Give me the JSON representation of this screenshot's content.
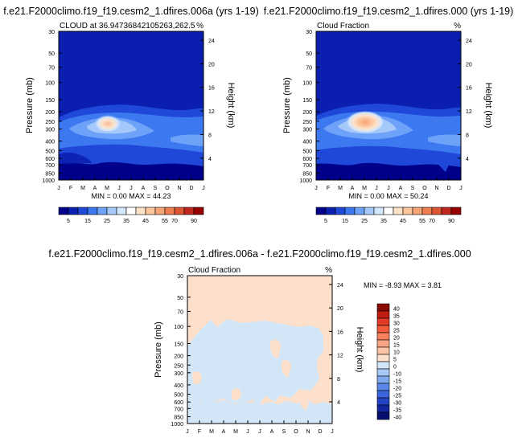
{
  "panels": [
    {
      "id": "p1",
      "main_title": "f.e21.F2000climo.f19_f19.cesm2_1.dfires.006a (yrs 1-19)",
      "left_label": "CLOUD at 36.94736842105263,262.5",
      "right_label": "%",
      "stats": "MIN =   0.00 MAX =  44.23"
    },
    {
      "id": "p2",
      "main_title": "f.e21.F2000climo.f19_f19.cesm2_1.dfires.000 (yrs 1-19)",
      "left_label": "Cloud Fraction",
      "right_label": "%",
      "stats": "MIN =   0.00 MAX =  50.24"
    },
    {
      "id": "p3",
      "main_title": "f.e21.F2000climo.f19_f19.cesm2_1.dfires.006a - f.e21.F2000climo.f19_f19.cesm2_1.dfires.000",
      "left_label": "Cloud Fraction",
      "right_label": "%",
      "stats": "MIN = -8.93 MAX =   3.81"
    }
  ],
  "axes": {
    "ylabel": "Pressure (mb)",
    "y2label": "Height (km)",
    "month_ticks": [
      "J",
      "F",
      "M",
      "A",
      "M",
      "J",
      "J",
      "A",
      "S",
      "O",
      "N",
      "D",
      "J"
    ],
    "pressure_ticks": [
      "30",
      "50",
      "70",
      "100",
      "150",
      "200",
      "250",
      "300",
      "400",
      "500",
      "600",
      "700",
      "850",
      "1000"
    ],
    "height_ticks": [
      "24",
      "20",
      "16",
      "12",
      "8",
      "4"
    ]
  },
  "colorbars": {
    "sequential": {
      "labels": [
        "5",
        "15",
        "25",
        "35",
        "45",
        "55",
        "70",
        "90"
      ],
      "colors": [
        "#00008a",
        "#0a1fb0",
        "#1f48d8",
        "#3c78f0",
        "#6ea2f8",
        "#a5c8fb",
        "#d4e6fc",
        "#ffffff",
        "#fde2c8",
        "#fcc59b",
        "#f7a478",
        "#ef7d52",
        "#dd5435",
        "#c0271c",
        "#960000"
      ]
    },
    "diverging": {
      "labels": [
        "40",
        "35",
        "30",
        "25",
        "20",
        "15",
        "10",
        "5",
        "0",
        "-10",
        "-15",
        "-20",
        "-25",
        "-30",
        "-35",
        "-40"
      ],
      "colors": [
        "#8c0a00",
        "#c01d12",
        "#e23c26",
        "#f25c3c",
        "#f6805e",
        "#f9a585",
        "#fbc4a6",
        "#fde0cc",
        "#d3e6f8",
        "#a8c8f5",
        "#7fa8ef",
        "#5887e8",
        "#3a65dc",
        "#2243c4",
        "#1226a0",
        "#060f70"
      ]
    }
  },
  "chart_data": [
    {
      "type": "contour",
      "title": "f.e21.F2000climo.f19_f19.cesm2_1.dfires.006a (yrs 1-19)",
      "variable": "CLOUD at 36.94736842105263,262.5",
      "units": "%",
      "x_ticks": [
        "J",
        "F",
        "M",
        "A",
        "M",
        "J",
        "J",
        "A",
        "S",
        "O",
        "N",
        "D",
        "J"
      ],
      "ylabel": "Pressure (mb)",
      "y2label": "Height (km)",
      "y_ticks": [
        30,
        50,
        70,
        100,
        150,
        200,
        250,
        300,
        400,
        500,
        600,
        700,
        850,
        1000
      ],
      "y2_ticks": [
        24,
        20,
        16,
        12,
        8,
        4
      ],
      "levels": [
        5,
        10,
        15,
        20,
        25,
        30,
        35,
        40,
        45,
        50,
        55,
        60,
        70,
        80,
        90
      ],
      "min": 0.0,
      "max": 44.23
    },
    {
      "type": "contour",
      "title": "f.e21.F2000climo.f19_f19.cesm2_1.dfires.000 (yrs 1-19)",
      "variable": "Cloud Fraction",
      "units": "%",
      "x_ticks": [
        "J",
        "F",
        "M",
        "A",
        "M",
        "J",
        "J",
        "A",
        "S",
        "O",
        "N",
        "D",
        "J"
      ],
      "ylabel": "Pressure (mb)",
      "y2label": "Height (km)",
      "y_ticks": [
        30,
        50,
        70,
        100,
        150,
        200,
        250,
        300,
        400,
        500,
        600,
        700,
        850,
        1000
      ],
      "y2_ticks": [
        24,
        20,
        16,
        12,
        8,
        4
      ],
      "levels": [
        5,
        10,
        15,
        20,
        25,
        30,
        35,
        40,
        45,
        50,
        55,
        60,
        70,
        80,
        90
      ],
      "min": 0.0,
      "max": 50.24
    },
    {
      "type": "contour",
      "title": "f.e21.F2000climo.f19_f19.cesm2_1.dfires.006a - f.e21.F2000climo.f19_f19.cesm2_1.dfires.000",
      "variable": "Cloud Fraction",
      "units": "%",
      "x_ticks": [
        "J",
        "F",
        "M",
        "A",
        "M",
        "J",
        "J",
        "A",
        "S",
        "O",
        "N",
        "D",
        "J"
      ],
      "ylabel": "Pressure (mb)",
      "y2label": "Height (km)",
      "y_ticks": [
        30,
        50,
        70,
        100,
        150,
        200,
        250,
        300,
        400,
        500,
        600,
        700,
        850,
        1000
      ],
      "y2_ticks": [
        24,
        20,
        16,
        12,
        8,
        4
      ],
      "levels": [
        -40,
        -35,
        -30,
        -25,
        -20,
        -15,
        -10,
        0,
        5,
        10,
        15,
        20,
        25,
        30,
        35,
        40
      ],
      "min": -8.93,
      "max": 3.81
    }
  ]
}
